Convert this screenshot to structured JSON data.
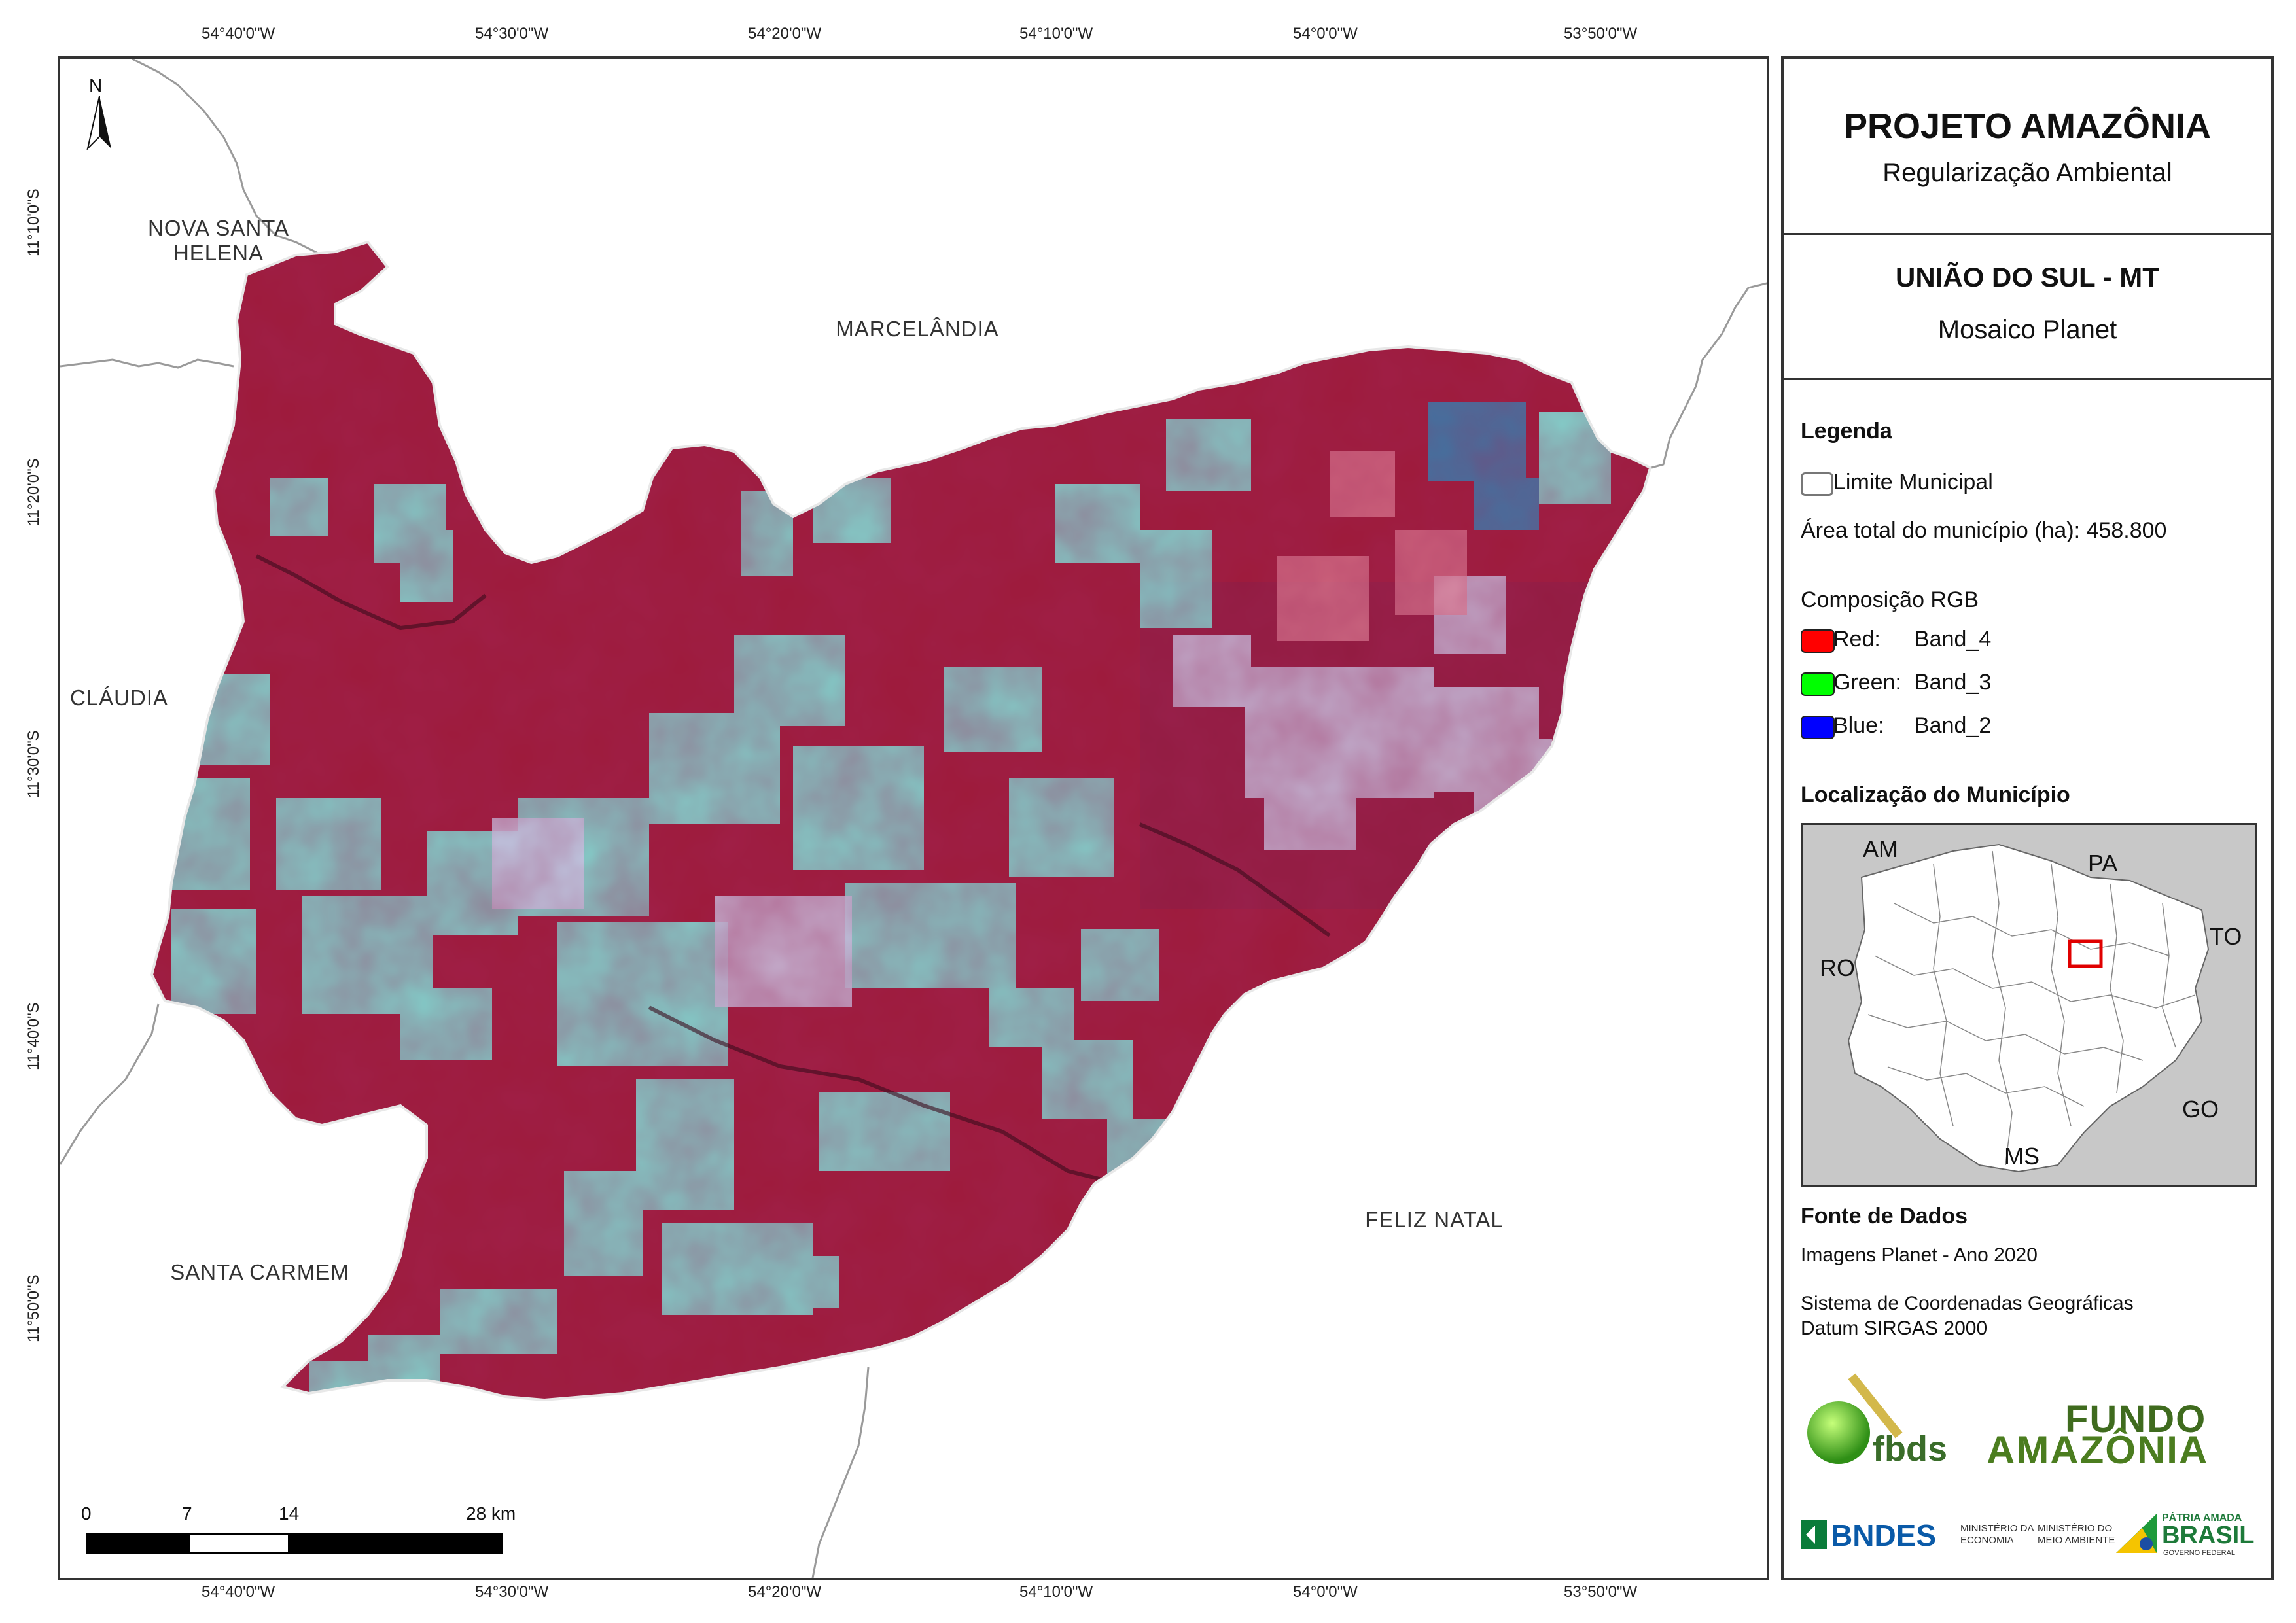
{
  "coordinates": {
    "longitudes": [
      "54°40'0\"W",
      "54°30'0\"W",
      "54°20'0\"W",
      "54°10'0\"W",
      "54°0'0\"W",
      "53°50'0\"W"
    ],
    "latitudes": [
      "11°10'0\"S",
      "11°20'0\"S",
      "11°30'0\"S",
      "11°40'0\"S",
      "11°50'0\"S"
    ]
  },
  "map": {
    "north_label": "N",
    "neighbors": {
      "nova_santa_helena": "NOVA SANTA\nHELENA",
      "marcelandia": "MARCELÂNDIA",
      "claudia": "CLÁUDIA",
      "santa_carmem": "SANTA CARMEM",
      "feliz_natal": "FELIZ NATAL"
    },
    "scale_bar": {
      "labels": [
        "0",
        "7",
        "14",
        "28 km"
      ]
    },
    "colors": {
      "forest": "#9e1a3a",
      "cleared": "#7fe0d8",
      "municipality_outline": "#e8e8e8"
    }
  },
  "panel": {
    "title": "PROJETO AMAZÔNIA",
    "subtitle": "Regularização Ambiental",
    "municipality": "UNIÃO DO SUL - MT",
    "mosaic": "Mosaico Planet",
    "legend_heading": "Legenda",
    "legend_boundary": "Limite Municipal",
    "legend_area": "Área total do município (ha): 458.800",
    "rgb_heading": "Composição RGB",
    "rgb": [
      {
        "channel": "Red:",
        "band": "Band_4",
        "color": "#ff0000"
      },
      {
        "channel": "Green:",
        "band": "Band_3",
        "color": "#00ff00"
      },
      {
        "channel": "Blue:",
        "band": "Band_2",
        "color": "#0000ff"
      }
    ],
    "location_heading": "Localização do Município",
    "inset_labels": {
      "am": "AM",
      "pa": "PA",
      "to": "TO",
      "ro": "RO",
      "go": "GO",
      "ms": "MS"
    },
    "sources_heading": "Fonte de Dados",
    "sources_images": "Imagens Planet - Ano 2020",
    "crs_line1": "Sistema de Coordenadas Geográficas",
    "crs_line2": "Datum SIRGAS 2000",
    "logos": {
      "fbds": "fbds",
      "fundo_line1": "FUNDO",
      "fundo_line2": "AMAZÔNIA",
      "bndes": "BNDES",
      "ministry_economy": "MINISTÉRIO DA\nECONOMIA",
      "ministry_environment": "MINISTÉRIO DO\nMEIO AMBIENTE",
      "patria_line1": "PÁTRIA AMADA",
      "patria_line2": "BRASIL",
      "patria_line3": "GOVERNO FEDERAL"
    }
  }
}
